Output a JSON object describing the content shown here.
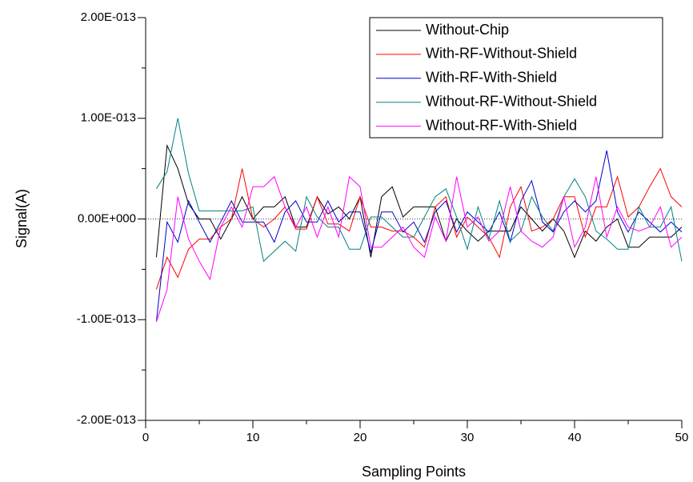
{
  "chart_data": {
    "type": "line",
    "xlabel": "Sampling Points",
    "ylabel": "Signal(A)",
    "x": [
      1,
      2,
      3,
      4,
      5,
      6,
      7,
      8,
      9,
      10,
      11,
      12,
      13,
      14,
      15,
      16,
      17,
      18,
      19,
      20,
      21,
      22,
      23,
      24,
      25,
      26,
      27,
      28,
      29,
      30,
      31,
      32,
      33,
      34,
      35,
      36,
      37,
      38,
      39,
      40,
      41,
      42,
      43,
      44,
      45,
      46,
      47,
      48,
      49,
      50
    ],
    "xlim": [
      0,
      50
    ],
    "xticks": [
      0,
      10,
      20,
      30,
      40,
      50
    ],
    "ylim": [
      -2e-13,
      2e-13
    ],
    "yticks": [
      {
        "value": -2e-13,
        "label": "-2.00E-013"
      },
      {
        "value": -1e-13,
        "label": "-1.00E-013"
      },
      {
        "value": 0,
        "label": "0.00E+000"
      },
      {
        "value": 1e-13,
        "label": "1.00E-013"
      },
      {
        "value": 2e-13,
        "label": "2.00E-013"
      }
    ],
    "zero_line": true,
    "legend": "top-right",
    "series": [
      {
        "name": "Without-Chip",
        "color": "#000000",
        "values": [
          -3.8e-14,
          7.3e-14,
          5e-14,
          1.5e-14,
          0,
          0,
          -2e-14,
          0,
          2.2e-14,
          0,
          1.2e-14,
          1.2e-14,
          2.2e-14,
          -8e-15,
          -8e-15,
          2.2e-14,
          5e-15,
          1.2e-14,
          0,
          2.2e-14,
          -3.8e-14,
          2.2e-14,
          3.2e-14,
          2e-15,
          1.2e-14,
          1.2e-14,
          1.2e-14,
          -2.2e-14,
          0,
          -1.2e-14,
          -2.2e-14,
          -1.2e-14,
          -1.2e-14,
          -1.2e-14,
          1.2e-14,
          0,
          -1.2e-14,
          0,
          -1.2e-14,
          -3.8e-14,
          -1.2e-14,
          -2.2e-14,
          -8e-15,
          0,
          -2.8e-14,
          -2.8e-14,
          -1.8e-14,
          -1.8e-14,
          -1.8e-14,
          -8e-15
        ]
      },
      {
        "name": "With-RF-Without-Shield",
        "color": "#ff0000",
        "values": [
          -7e-14,
          -3.8e-14,
          -5.8e-14,
          -3e-14,
          -2e-14,
          -2e-14,
          -8e-15,
          0,
          5e-14,
          0,
          -8e-15,
          0,
          1.2e-14,
          -1e-14,
          -1e-14,
          2.2e-14,
          -5e-15,
          -5e-15,
          -1.2e-14,
          2.2e-14,
          -8e-15,
          -8e-15,
          -1.2e-14,
          -1.2e-14,
          -1.8e-14,
          -2.8e-14,
          1.2e-14,
          2.2e-14,
          -1.8e-14,
          2e-15,
          -8e-15,
          -1.8e-14,
          -3.8e-14,
          1.2e-14,
          3.2e-14,
          -1.2e-14,
          -8e-15,
          0,
          2.2e-14,
          2.2e-14,
          -1.8e-14,
          1.2e-14,
          1.2e-14,
          4.2e-14,
          2e-15,
          1.2e-14,
          3.2e-14,
          5e-14,
          2.2e-14,
          1.2e-14
        ]
      },
      {
        "name": "With-RF-With-Shield",
        "color": "#0000cc",
        "values": [
          -1.02e-13,
          -3e-15,
          -2.3e-14,
          1.8e-14,
          -3e-15,
          -2.3e-14,
          -3e-15,
          1.8e-14,
          -3e-15,
          -3e-15,
          -3e-15,
          -2.3e-14,
          7e-15,
          1.8e-14,
          -3e-15,
          -3e-15,
          1.8e-14,
          -3e-15,
          7e-15,
          7e-15,
          -3.3e-14,
          7e-15,
          7e-15,
          -1.3e-14,
          -3e-15,
          -2.3e-14,
          7e-15,
          1.8e-14,
          -1.3e-14,
          7e-15,
          -3e-15,
          -1.3e-14,
          7e-15,
          -2.3e-14,
          1.8e-14,
          3.8e-14,
          -3e-15,
          -1.3e-14,
          7e-15,
          1.8e-14,
          7e-15,
          1.8e-14,
          6.8e-14,
          7e-15,
          -1.3e-14,
          7e-15,
          -3e-15,
          -1.3e-14,
          -3e-15,
          -1.3e-14
        ]
      },
      {
        "name": "Without-RF-Without-Shield",
        "color": "#008080",
        "values": [
          3e-14,
          4.7e-14,
          1e-13,
          4.5e-14,
          8e-15,
          8e-15,
          8e-15,
          8e-15,
          8e-15,
          1.2e-14,
          -4.2e-14,
          -3.2e-14,
          -2.2e-14,
          -3.2e-14,
          2.2e-14,
          2e-15,
          -8e-15,
          -8e-15,
          -3e-14,
          -3e-14,
          2e-15,
          2e-15,
          -8e-15,
          -1.8e-14,
          -1.8e-14,
          2e-15,
          2.2e-14,
          3e-14,
          2e-15,
          -3e-14,
          1.2e-14,
          -2e-14,
          1.8e-14,
          -2.2e-14,
          -1.2e-14,
          2.2e-14,
          2e-15,
          -1.2e-14,
          2.2e-14,
          4e-14,
          2.2e-14,
          -1.2e-14,
          -2e-14,
          -3e-14,
          -3e-14,
          1.2e-14,
          -8e-15,
          -8e-15,
          1.2e-14,
          -4.2e-14
        ]
      },
      {
        "name": "Without-RF-With-Shield",
        "color": "#ff00ff",
        "values": [
          -1.02e-13,
          -7e-14,
          2.2e-14,
          -2e-14,
          -4.2e-14,
          -6e-14,
          -8e-15,
          1.2e-14,
          -8e-15,
          3.2e-14,
          3.2e-14,
          4.2e-14,
          1.2e-14,
          -8e-15,
          1.2e-14,
          -1.8e-14,
          1.2e-14,
          -1.8e-14,
          4.2e-14,
          3.2e-14,
          -2.8e-14,
          -2.8e-14,
          -1.8e-14,
          -8e-15,
          -2.8e-14,
          -3.8e-14,
          2e-15,
          -2.2e-14,
          4.2e-14,
          -8e-15,
          2e-15,
          -2.2e-14,
          -1.2e-14,
          3.2e-14,
          -1.2e-14,
          -2.2e-14,
          -2.8e-14,
          -1.8e-14,
          2.2e-14,
          -2.8e-14,
          -8e-15,
          4.2e-14,
          -1.8e-14,
          1.2e-14,
          -8e-15,
          -1.2e-14,
          -8e-15,
          1.2e-14,
          -2.8e-14,
          -1.8e-14
        ]
      }
    ]
  }
}
